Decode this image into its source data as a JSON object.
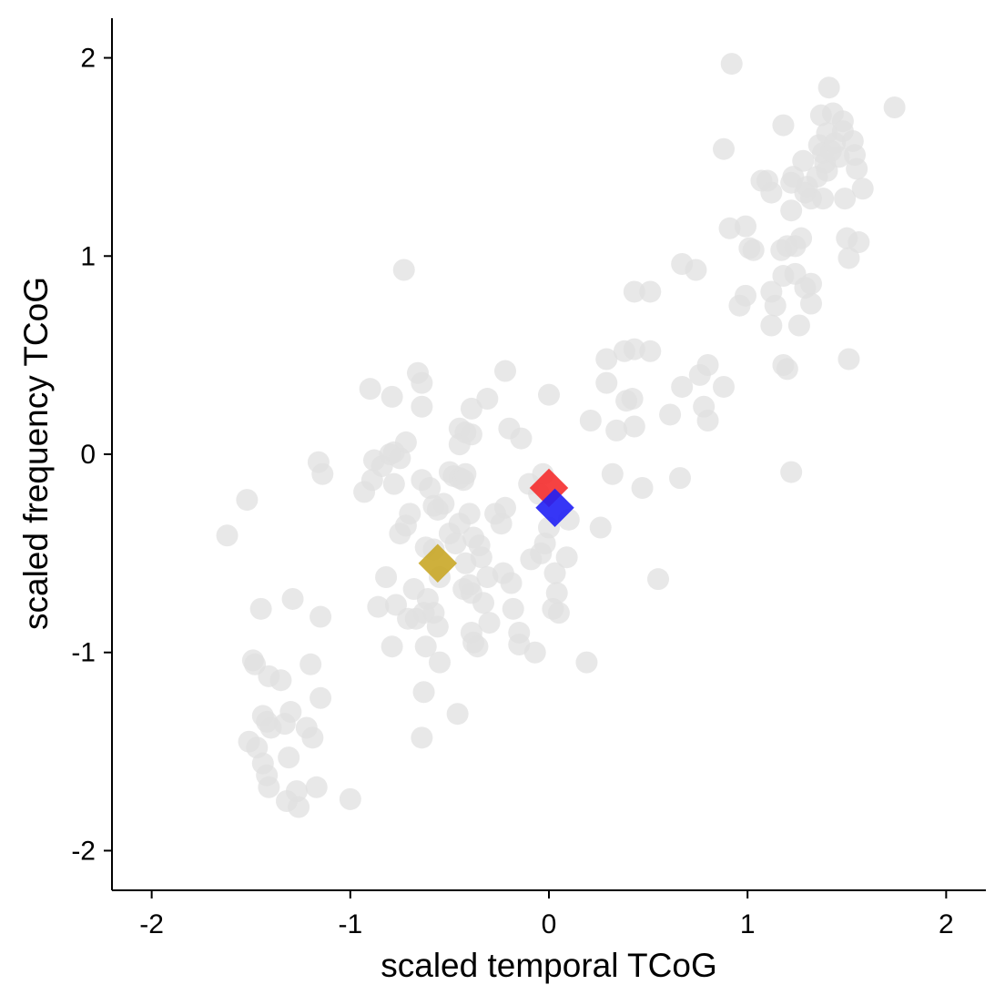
{
  "chart_data": {
    "type": "scatter",
    "title": "",
    "xlabel": "scaled temporal TCoG",
    "ylabel": "scaled frequency TCoG",
    "xlim": [
      -2.2,
      2.2
    ],
    "ylim": [
      -2.2,
      2.2
    ],
    "x_ticks": [
      -2,
      -1,
      0,
      1,
      2
    ],
    "y_ticks": [
      -2,
      -1,
      0,
      1,
      2
    ],
    "x_tick_labels": [
      "-2",
      "-1",
      "0",
      "1",
      "2"
    ],
    "y_tick_labels": [
      "-2",
      "-1",
      "0",
      "1",
      "2"
    ],
    "grid": false,
    "legend": "none",
    "series": [
      {
        "marker": "circle",
        "color": "#e0e0e0",
        "points": [
          [
            -1.62,
            -0.41
          ],
          [
            -1.52,
            -0.23
          ],
          [
            -1.49,
            -1.04
          ],
          [
            -1.48,
            -1.06
          ],
          [
            -1.45,
            -0.78
          ],
          [
            -1.44,
            -1.32
          ],
          [
            -1.42,
            -1.35
          ],
          [
            -1.41,
            -1.12
          ],
          [
            -1.4,
            -1.38
          ],
          [
            -1.35,
            -1.14
          ],
          [
            -1.33,
            -1.36
          ],
          [
            -1.3,
            -1.3
          ],
          [
            -1.29,
            -0.73
          ],
          [
            -1.2,
            -1.06
          ],
          [
            -1.15,
            -0.82
          ],
          [
            -1.15,
            -1.23
          ],
          [
            -1.22,
            -1.38
          ],
          [
            -1.19,
            -1.43
          ],
          [
            -1.31,
            -1.53
          ],
          [
            -1.51,
            -1.45
          ],
          [
            -1.47,
            -1.48
          ],
          [
            -1.44,
            -1.56
          ],
          [
            -1.42,
            -1.62
          ],
          [
            -1.41,
            -1.68
          ],
          [
            -1.32,
            -1.75
          ],
          [
            -1.26,
            -1.78
          ],
          [
            -1.27,
            -1.7
          ],
          [
            -1.17,
            -1.68
          ],
          [
            -1.0,
            -1.74
          ],
          [
            -1.16,
            -0.04
          ],
          [
            -1.14,
            -0.1
          ],
          [
            -0.93,
            -0.19
          ],
          [
            -0.89,
            -0.13
          ],
          [
            -0.88,
            -0.03
          ],
          [
            -0.84,
            -0.06
          ],
          [
            -0.8,
            0.0
          ],
          [
            -0.78,
            0.01
          ],
          [
            -0.78,
            -0.15
          ],
          [
            -0.75,
            -0.02
          ],
          [
            -0.72,
            0.06
          ],
          [
            -0.9,
            0.33
          ],
          [
            -0.79,
            0.29
          ],
          [
            -0.66,
            0.41
          ],
          [
            -0.64,
            0.36
          ],
          [
            -0.64,
            0.24
          ],
          [
            -0.73,
            0.93
          ],
          [
            -0.64,
            -0.13
          ],
          [
            -0.6,
            -0.17
          ],
          [
            -0.58,
            -0.26
          ],
          [
            -0.56,
            -0.28
          ],
          [
            -0.53,
            -0.25
          ],
          [
            -0.5,
            -0.09
          ],
          [
            -0.48,
            -0.11
          ],
          [
            -0.45,
            -0.12
          ],
          [
            -0.42,
            -0.1
          ],
          [
            -0.7,
            -0.3
          ],
          [
            -0.75,
            -0.4
          ],
          [
            -0.72,
            -0.36
          ],
          [
            -0.62,
            -0.47
          ],
          [
            -0.58,
            -0.48
          ],
          [
            -0.55,
            -0.62
          ],
          [
            -0.5,
            -0.4
          ],
          [
            -0.47,
            -0.45
          ],
          [
            -0.42,
            -0.55
          ],
          [
            -0.45,
            -0.35
          ],
          [
            -0.4,
            -0.3
          ],
          [
            -0.38,
            -0.42
          ],
          [
            -0.35,
            -0.46
          ],
          [
            -0.34,
            -0.52
          ],
          [
            -0.31,
            -0.62
          ],
          [
            -0.4,
            -0.66
          ],
          [
            -0.43,
            -0.68
          ],
          [
            -0.39,
            -0.7
          ],
          [
            -0.33,
            -0.75
          ],
          [
            -0.3,
            -0.85
          ],
          [
            -0.27,
            -0.3
          ],
          [
            -0.24,
            -0.35
          ],
          [
            -0.23,
            -0.6
          ],
          [
            -0.19,
            -0.65
          ],
          [
            -0.22,
            -0.27
          ],
          [
            -0.18,
            -0.78
          ],
          [
            -0.15,
            -0.9
          ],
          [
            -0.15,
            -0.96
          ],
          [
            -0.09,
            -0.53
          ],
          [
            -0.07,
            -1.0
          ],
          [
            -0.04,
            -0.5
          ],
          [
            -0.02,
            -0.45
          ],
          [
            0.0,
            -0.37
          ],
          [
            0.02,
            -0.78
          ],
          [
            0.03,
            -0.6
          ],
          [
            0.04,
            -0.7
          ],
          [
            0.05,
            -0.8
          ],
          [
            0.09,
            -0.52
          ],
          [
            0.1,
            -0.33
          ],
          [
            -0.03,
            -0.1
          ],
          [
            -0.1,
            -0.15
          ],
          [
            -0.05,
            -0.2
          ],
          [
            -0.82,
            -0.62
          ],
          [
            -0.86,
            -0.77
          ],
          [
            -0.77,
            -0.76
          ],
          [
            -0.79,
            -0.97
          ],
          [
            -0.71,
            -0.83
          ],
          [
            -0.67,
            -0.83
          ],
          [
            -0.68,
            -0.68
          ],
          [
            -0.63,
            -0.8
          ],
          [
            -0.61,
            -0.73
          ],
          [
            -0.58,
            -0.8
          ],
          [
            -0.56,
            -0.87
          ],
          [
            -0.62,
            -0.97
          ],
          [
            -0.55,
            -1.05
          ],
          [
            -0.63,
            -1.2
          ],
          [
            -0.64,
            -1.43
          ],
          [
            -0.46,
            -1.31
          ],
          [
            -0.39,
            -0.9
          ],
          [
            -0.38,
            -0.95
          ],
          [
            -0.36,
            -0.97
          ],
          [
            -0.45,
            0.13
          ],
          [
            -0.42,
            0.11
          ],
          [
            -0.45,
            0.05
          ],
          [
            -0.43,
            -0.13
          ],
          [
            -0.39,
            0.23
          ],
          [
            -0.39,
            0.1
          ],
          [
            -0.31,
            0.28
          ],
          [
            -0.22,
            0.42
          ],
          [
            -0.2,
            0.13
          ],
          [
            -0.14,
            0.08
          ],
          [
            0.0,
            0.3
          ],
          [
            0.21,
            0.17
          ],
          [
            0.29,
            0.36
          ],
          [
            0.29,
            0.48
          ],
          [
            0.32,
            -0.1
          ],
          [
            0.34,
            0.12
          ],
          [
            0.38,
            0.52
          ],
          [
            0.39,
            0.27
          ],
          [
            0.43,
            0.53
          ],
          [
            0.42,
            0.28
          ],
          [
            0.43,
            0.14
          ],
          [
            0.43,
            0.82
          ],
          [
            0.51,
            0.82
          ],
          [
            0.51,
            0.52
          ],
          [
            0.47,
            -0.17
          ],
          [
            0.26,
            -0.37
          ],
          [
            0.55,
            -0.63
          ],
          [
            0.61,
            0.2
          ],
          [
            0.66,
            -0.12
          ],
          [
            0.67,
            0.34
          ],
          [
            0.67,
            0.96
          ],
          [
            0.74,
            0.93
          ],
          [
            0.76,
            0.4
          ],
          [
            0.78,
            0.24
          ],
          [
            0.8,
            0.17
          ],
          [
            0.8,
            0.45
          ],
          [
            0.88,
            0.34
          ],
          [
            0.19,
            -1.05
          ],
          [
            0.88,
            1.54
          ],
          [
            0.91,
            1.14
          ],
          [
            0.92,
            1.97
          ],
          [
            0.96,
            0.75
          ],
          [
            0.99,
            0.8
          ],
          [
            0.99,
            1.15
          ],
          [
            1.01,
            1.04
          ],
          [
            1.03,
            1.03
          ],
          [
            1.07,
            1.38
          ],
          [
            1.1,
            1.38
          ],
          [
            1.12,
            1.32
          ],
          [
            1.12,
            0.82
          ],
          [
            1.12,
            0.65
          ],
          [
            1.14,
            0.75
          ],
          [
            1.17,
            1.03
          ],
          [
            1.18,
            0.9
          ],
          [
            1.18,
            1.66
          ],
          [
            1.18,
            0.45
          ],
          [
            1.2,
            0.43
          ],
          [
            1.2,
            1.05
          ],
          [
            1.22,
            1.23
          ],
          [
            1.22,
            1.37
          ],
          [
            1.23,
            1.4
          ],
          [
            1.24,
            1.05
          ],
          [
            1.24,
            0.91
          ],
          [
            1.26,
            0.65
          ],
          [
            1.27,
            1.09
          ],
          [
            1.28,
            1.48
          ],
          [
            1.29,
            1.32
          ],
          [
            1.29,
            0.84
          ],
          [
            1.3,
            1.35
          ],
          [
            1.32,
            1.29
          ],
          [
            1.32,
            0.76
          ],
          [
            1.32,
            0.86
          ],
          [
            1.35,
            1.4
          ],
          [
            1.36,
            1.56
          ],
          [
            1.37,
            1.71
          ],
          [
            1.38,
            1.52
          ],
          [
            1.38,
            1.29
          ],
          [
            1.39,
            1.47
          ],
          [
            1.4,
            1.43
          ],
          [
            1.4,
            1.62
          ],
          [
            1.41,
            1.85
          ],
          [
            1.42,
            1.53
          ],
          [
            1.43,
            1.72
          ],
          [
            1.44,
            1.57
          ],
          [
            1.46,
            1.5
          ],
          [
            1.48,
            1.68
          ],
          [
            1.48,
            1.63
          ],
          [
            1.49,
            1.29
          ],
          [
            1.5,
            1.09
          ],
          [
            1.51,
            0.99
          ],
          [
            1.51,
            0.48
          ],
          [
            1.53,
            1.58
          ],
          [
            1.54,
            1.51
          ],
          [
            1.55,
            1.44
          ],
          [
            1.56,
            1.07
          ],
          [
            1.58,
            1.34
          ],
          [
            1.74,
            1.75
          ],
          [
            1.22,
            -0.09
          ]
        ]
      },
      {
        "marker": "diamond",
        "color": "#c9a727",
        "points": [
          [
            -0.56,
            -0.55
          ]
        ]
      },
      {
        "marker": "diamond",
        "color": "#f52e2e",
        "points": [
          [
            0.0,
            -0.17
          ]
        ]
      },
      {
        "marker": "diamond",
        "color": "#2020f5",
        "points": [
          [
            0.03,
            -0.27
          ]
        ]
      }
    ]
  }
}
